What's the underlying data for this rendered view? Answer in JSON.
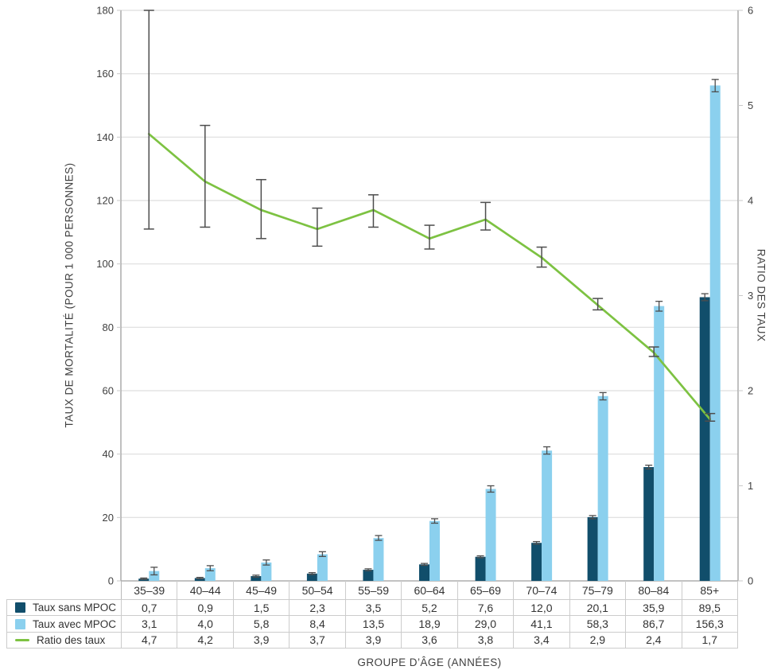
{
  "chart": {
    "left_axis_title": "TAUX DE MORTALITÉ (POUR 1 000 PERSONNES)",
    "right_axis_title": "RATIO DES TAUX",
    "x_axis_title": "GROUPE D’ÂGE (ANNÉES)"
  },
  "chart_data": {
    "type": "bar+line",
    "categories": [
      "35–39",
      "40–44",
      "45–49",
      "50–54",
      "55–59",
      "60–64",
      "65–69",
      "70–74",
      "75–79",
      "80–84",
      "85+"
    ],
    "left_axis": {
      "label": "TAUX DE MORTALITÉ (POUR 1 000 PERSONNES)",
      "min": 0,
      "max": 180,
      "step": 20,
      "ticks": [
        "0",
        "20",
        "40",
        "60",
        "80",
        "100",
        "120",
        "140",
        "160",
        "180"
      ]
    },
    "right_axis": {
      "label": "RATIO DES TAUX",
      "min": 0,
      "max": 6,
      "step": 1,
      "ticks": [
        "0",
        "1",
        "2",
        "3",
        "4",
        "5",
        "6"
      ]
    },
    "x_axis": {
      "label": "GROUPE D’ÂGE (ANNÉES)"
    },
    "grid": true,
    "error_bars": true,
    "legend_position": "table-left",
    "series": [
      {
        "name": "Taux sans MPOC",
        "type": "bar",
        "axis": "left",
        "color": "#114E6B",
        "values": [
          0.7,
          0.9,
          1.5,
          2.3,
          3.5,
          5.2,
          7.6,
          12.0,
          20.1,
          35.9,
          89.5
        ],
        "display": [
          "0,7",
          "0,9",
          "1,5",
          "2,3",
          "3,5",
          "5,2",
          "7,6",
          "12,0",
          "20,1",
          "35,9",
          "89,5"
        ],
        "ci": [
          [
            0.5,
            0.9
          ],
          [
            0.7,
            1.1
          ],
          [
            1.2,
            1.8
          ],
          [
            2.0,
            2.6
          ],
          [
            3.2,
            3.8
          ],
          [
            4.9,
            5.5
          ],
          [
            7.3,
            7.9
          ],
          [
            11.6,
            12.4
          ],
          [
            19.6,
            20.6
          ],
          [
            35.3,
            36.5
          ],
          [
            88.4,
            90.6
          ]
        ]
      },
      {
        "name": "Taux avec MPOC",
        "type": "bar",
        "axis": "left",
        "color": "#8BD0EE",
        "values": [
          3.1,
          4.0,
          5.8,
          8.4,
          13.5,
          18.9,
          29.0,
          41.1,
          58.3,
          86.7,
          156.3
        ],
        "display": [
          "3,1",
          "4,0",
          "5,8",
          "8,4",
          "13,5",
          "18,9",
          "29,0",
          "41,1",
          "58,3",
          "86,7",
          "156,3"
        ],
        "ci": [
          [
            1.9,
            4.3
          ],
          [
            3.2,
            4.8
          ],
          [
            5.0,
            6.6
          ],
          [
            7.7,
            9.2
          ],
          [
            12.8,
            14.3
          ],
          [
            18.2,
            19.6
          ],
          [
            28.0,
            30.0
          ],
          [
            40.0,
            42.3
          ],
          [
            57.1,
            59.4
          ],
          [
            85.1,
            88.2
          ],
          [
            154.3,
            158.2
          ]
        ]
      },
      {
        "name": "Ratio des taux",
        "type": "line",
        "axis": "right",
        "color": "#7DC242",
        "values": [
          4.7,
          4.2,
          3.9,
          3.7,
          3.9,
          3.6,
          3.8,
          3.4,
          2.9,
          2.4,
          1.7
        ],
        "display": [
          "4,7",
          "4,2",
          "3,9",
          "3,7",
          "3,9",
          "3,6",
          "3,8",
          "3,4",
          "2,9",
          "2,4",
          "1,7"
        ],
        "ci": [
          [
            3.7,
            6.0
          ],
          [
            3.72,
            4.79
          ],
          [
            3.6,
            4.22
          ],
          [
            3.52,
            3.92
          ],
          [
            3.72,
            4.06
          ],
          [
            3.49,
            3.74
          ],
          [
            3.69,
            3.98
          ],
          [
            3.3,
            3.51
          ],
          [
            2.85,
            2.97
          ],
          [
            2.36,
            2.46
          ],
          [
            1.68,
            1.76
          ]
        ]
      }
    ],
    "colors": {
      "grid": "#DEDEDE",
      "axis": "#9E9E9E",
      "tick": "#C9C9C9",
      "error_bar": "#4D4D4D",
      "table_border": "#CCCCCC",
      "text": "#3F3F3F"
    }
  }
}
